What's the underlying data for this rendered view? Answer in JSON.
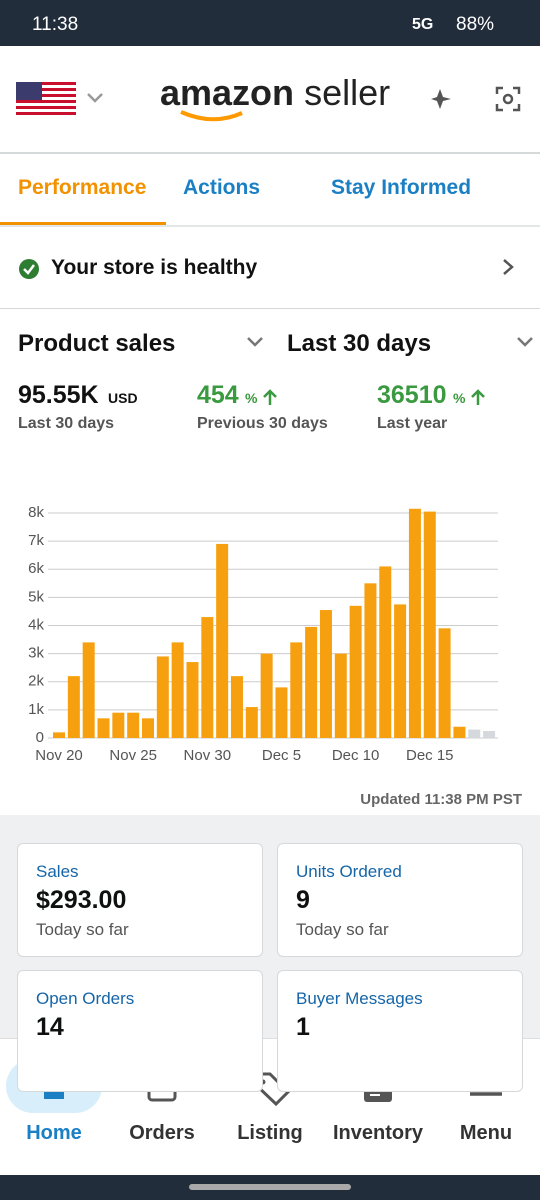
{
  "status_bar": {
    "time": "11:38",
    "network": "5G",
    "battery": "88%"
  },
  "header": {
    "logo_word": "amazon",
    "logo_suffix": "seller"
  },
  "tabs": [
    "Performance",
    "Actions",
    "Stay Informed"
  ],
  "health": {
    "text": "Your store is healthy"
  },
  "selectors": {
    "metric": "Product sales",
    "period": "Last 30 days"
  },
  "metrics": [
    {
      "value": "95.55K",
      "unit": "USD",
      "label": "Last 30 days"
    },
    {
      "value": "454",
      "unit": "%",
      "label": "Previous 30 days"
    },
    {
      "value": "36510",
      "unit": "%",
      "label": "Last year"
    }
  ],
  "chart_data": {
    "type": "bar",
    "categories": [
      "Nov 20",
      null,
      null,
      null,
      null,
      "Nov 25",
      null,
      null,
      null,
      null,
      "Nov 30",
      null,
      null,
      null,
      null,
      "Dec 5",
      null,
      null,
      null,
      null,
      "Dec 10",
      null,
      null,
      null,
      null,
      "Dec 15",
      null,
      null,
      null,
      null
    ],
    "values": [
      200,
      2200,
      3400,
      700,
      900,
      900,
      700,
      2900,
      3400,
      2700,
      4300,
      6900,
      2200,
      1100,
      3000,
      1800,
      3400,
      3950,
      4550,
      3000,
      4700,
      5500,
      6100,
      4750,
      8150,
      8050,
      3900,
      400,
      300,
      250
    ],
    "colors": [
      "#f7a00f",
      "#f7a00f",
      "#f7a00f",
      "#f7a00f",
      "#f7a00f",
      "#f7a00f",
      "#f7a00f",
      "#f7a00f",
      "#f7a00f",
      "#f7a00f",
      "#f7a00f",
      "#f7a00f",
      "#f7a00f",
      "#f7a00f",
      "#f7a00f",
      "#f7a00f",
      "#f7a00f",
      "#f7a00f",
      "#f7a00f",
      "#f7a00f",
      "#f7a00f",
      "#f7a00f",
      "#f7a00f",
      "#f7a00f",
      "#f7a00f",
      "#f7a00f",
      "#f7a00f",
      "#f7a00f",
      "#d5d8dc",
      "#d5d8dc"
    ],
    "ylim": [
      0,
      8000
    ],
    "yticks": [
      0,
      {
        "value": 1000,
        "label": "1k"
      },
      {
        "value": 2000,
        "label": "2k"
      },
      {
        "value": 3000,
        "label": "3k"
      },
      {
        "value": 4000,
        "label": "4k"
      },
      {
        "value": 5000,
        "label": "5k"
      },
      {
        "value": 6000,
        "label": "6k"
      },
      {
        "value": 7000,
        "label": "7k"
      },
      {
        "value": 8000,
        "label": "8k"
      }
    ],
    "grid": true
  },
  "updated": "Updated 11:38 PM PST",
  "cards": [
    {
      "title": "Sales",
      "value": "$293.00",
      "note": "Today so far"
    },
    {
      "title": "Units Ordered",
      "value": "9",
      "note": "Today so far"
    },
    {
      "title": "Open Orders",
      "value": "14"
    },
    {
      "title": "Buyer Messages",
      "value": "1"
    }
  ],
  "nav": [
    "Home",
    "Orders",
    "Listing",
    "Inventory",
    "Menu"
  ]
}
